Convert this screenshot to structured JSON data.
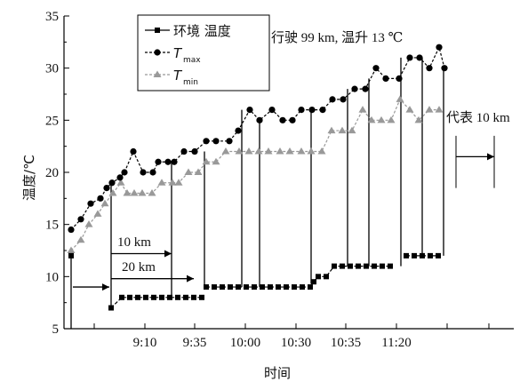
{
  "chart_data": {
    "type": "line",
    "ylabel": "温度/℃",
    "xlabel": "时间",
    "yticks": [
      5,
      10,
      15,
      20,
      25,
      30,
      35
    ],
    "ylim": [
      5,
      35
    ],
    "x_tick_labels": [
      "9:10",
      "9:35",
      "10:00",
      "10:30",
      "10:35",
      "11:20"
    ],
    "grid": false,
    "legend_position": "top-left",
    "series": [
      {
        "name": "环境 温度",
        "marker": "square",
        "color": "#000000",
        "values": [
          12,
          7,
          8,
          8,
          8,
          8,
          8,
          8,
          8,
          8,
          8,
          8,
          8,
          9,
          9,
          9,
          9,
          9,
          9,
          9,
          9,
          9,
          9,
          9,
          9,
          9,
          9,
          9.5,
          10,
          10,
          11,
          11,
          11,
          11,
          11,
          11,
          11,
          11,
          12,
          12,
          12,
          12,
          12
        ]
      },
      {
        "name_main": "T",
        "name_sub": "max",
        "marker": "circle",
        "color": "#000000",
        "values": [
          14.5,
          15.5,
          17,
          17.5,
          18.5,
          19,
          19.5,
          20,
          22,
          20,
          20,
          21,
          21,
          21,
          22,
          22,
          23,
          23,
          23,
          24,
          26,
          25,
          26,
          25,
          25,
          26,
          26,
          26,
          27,
          27,
          28,
          28,
          30,
          29,
          29,
          31,
          31,
          30,
          32,
          30
        ]
      },
      {
        "name_main": "T",
        "name_sub": "min",
        "marker": "triangle",
        "color": "#999999",
        "values": [
          12.5,
          13.5,
          15,
          16,
          17,
          18,
          19,
          18,
          18,
          18,
          18,
          19,
          19,
          19,
          20,
          20,
          21,
          21,
          22,
          22,
          22,
          22,
          22,
          22,
          22,
          22,
          22,
          22,
          24,
          24,
          24,
          26,
          25,
          25,
          25,
          27,
          26,
          25,
          26,
          26
        ]
      }
    ],
    "annotations": {
      "trip": "行驶 99 km, 温升 13 ℃",
      "d10": "10 km",
      "d20": "20 km",
      "represents": "代表 10 km"
    }
  }
}
